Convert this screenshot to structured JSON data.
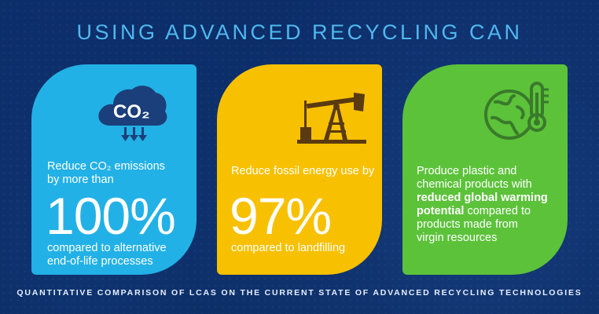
{
  "header": {
    "title": "USING ADVANCED RECYCLING CAN"
  },
  "cards": [
    {
      "icon": "co2-cloud-icon",
      "color": "#22b1e6",
      "icon_text": "CO₂",
      "line1": "Reduce CO₂ emissions",
      "line2": "by more than",
      "big": "100%",
      "after1": "compared to alternative",
      "after2": "end-of-life processes"
    },
    {
      "icon": "oil-pump-icon",
      "color": "#f7c000",
      "line1": "Reduce fossil energy use by",
      "big": "97%",
      "after1": "compared to landfilling"
    },
    {
      "icon": "globe-thermometer-icon",
      "color": "#5cc23a",
      "line1": "Produce plastic and",
      "line2": "chemical products with",
      "bold1": "reduced global warming",
      "bold2": "potential",
      "after_bold": " compared to",
      "line4": "products made from",
      "line5": "virgin resources"
    }
  ],
  "footer": {
    "text": "QUANTITATIVE COMPARISON OF LCAS ON THE CURRENT STATE OF ADVANCED RECYCLING TECHNOLOGIES"
  },
  "colors": {
    "background": "#0b2a63",
    "title": "#4fb8ee",
    "icon": "#1b3f7a"
  }
}
